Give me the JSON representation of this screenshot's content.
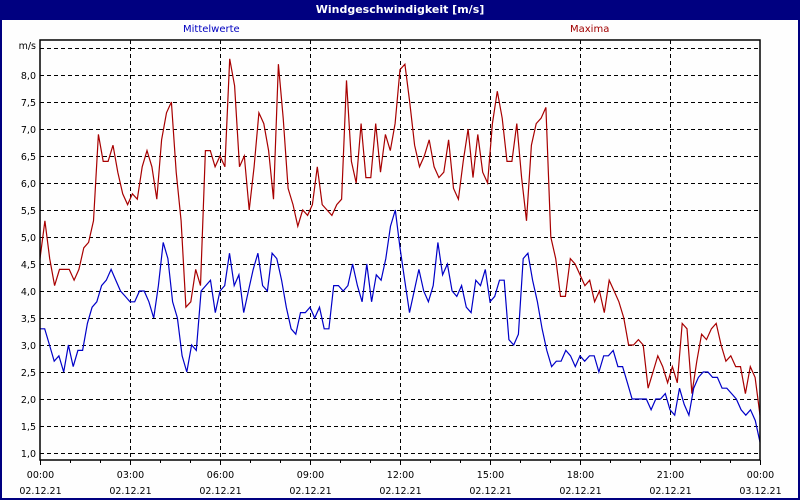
{
  "window": {
    "title": "Windgeschwindigkeit [m/s]"
  },
  "legend": {
    "series1": "Mittelwerte",
    "series2": "Maxima"
  },
  "colors": {
    "mittelwerte": "#0000c8",
    "maxima": "#a80000",
    "titlebar": "#000080"
  },
  "chart_data": {
    "type": "line",
    "title": "Windgeschwindigkeit [m/s]",
    "xlabel": "",
    "ylabel": "m/s",
    "ylim": [
      0.87,
      8.65
    ],
    "y_ticks": [
      "1,0",
      "1,5",
      "2,0",
      "2,5",
      "3,0",
      "3,5",
      "4,0",
      "4,5",
      "5,0",
      "5,5",
      "6,0",
      "6,5",
      "7,0",
      "7,5",
      "8,0"
    ],
    "x_ticks": [
      {
        "time": "00:00",
        "date": "02.12.21"
      },
      {
        "time": "03:00",
        "date": "02.12.21"
      },
      {
        "time": "06:00",
        "date": "02.12.21"
      },
      {
        "time": "09:00",
        "date": "02.12.21"
      },
      {
        "time": "12:00",
        "date": "02.12.21"
      },
      {
        "time": "15:00",
        "date": "02.12.21"
      },
      {
        "time": "18:00",
        "date": "02.12.21"
      },
      {
        "time": "21:00",
        "date": "02.12.21"
      },
      {
        "time": "00:00",
        "date": "03.12.21"
      }
    ],
    "grid": true,
    "legend_position": "top",
    "x_interval_minutes": 10,
    "series": [
      {
        "name": "Mittelwerte",
        "color": "#0000c8",
        "values": [
          3.3,
          3.3,
          3.0,
          2.7,
          2.8,
          2.5,
          3.0,
          2.6,
          2.9,
          2.9,
          3.4,
          3.7,
          3.8,
          4.1,
          4.2,
          4.4,
          4.2,
          4.0,
          3.9,
          3.8,
          3.8,
          4.0,
          4.0,
          3.8,
          3.5,
          4.1,
          4.9,
          4.6,
          3.8,
          3.5,
          2.8,
          2.5,
          3.0,
          2.9,
          4.0,
          4.1,
          4.2,
          3.6,
          4.0,
          4.1,
          4.7,
          4.1,
          4.3,
          3.6,
          4.0,
          4.4,
          4.7,
          4.1,
          4.0,
          4.7,
          4.6,
          4.2,
          3.7,
          3.3,
          3.2,
          3.6,
          3.6,
          3.7,
          3.5,
          3.7,
          3.3,
          3.3,
          4.1,
          4.1,
          4.0,
          4.1,
          4.5,
          4.1,
          3.8,
          4.5,
          3.8,
          4.3,
          4.2,
          4.6,
          5.2,
          5.5,
          4.8,
          4.2,
          3.6,
          4.0,
          4.4,
          4.0,
          3.8,
          4.1,
          4.9,
          4.3,
          4.5,
          4.0,
          3.9,
          4.1,
          3.7,
          3.6,
          4.2,
          4.1,
          4.4,
          3.8,
          3.9,
          4.2,
          4.2,
          3.1,
          3.0,
          3.2,
          4.6,
          4.7,
          4.2,
          3.8,
          3.3,
          2.9,
          2.6,
          2.7,
          2.7,
          2.9,
          2.8,
          2.6,
          2.8,
          2.7,
          2.8,
          2.8,
          2.5,
          2.8,
          2.8,
          2.9,
          2.6,
          2.6,
          2.3,
          2.0,
          2.0,
          2.0,
          2.0,
          1.8,
          2.0,
          2.0,
          2.1,
          1.8,
          1.7,
          2.2,
          1.9,
          1.7,
          2.2,
          2.4,
          2.5,
          2.5,
          2.4,
          2.4,
          2.2,
          2.2,
          2.1,
          2.0,
          1.8,
          1.7,
          1.8,
          1.6,
          1.2
        ]
      },
      {
        "name": "Maxima",
        "color": "#a80000",
        "values": [
          4.6,
          5.3,
          4.6,
          4.1,
          4.4,
          4.4,
          4.4,
          4.2,
          4.4,
          4.8,
          4.9,
          5.3,
          6.9,
          6.4,
          6.4,
          6.7,
          6.2,
          5.8,
          5.6,
          5.8,
          5.7,
          6.3,
          6.6,
          6.3,
          5.7,
          6.8,
          7.3,
          7.5,
          6.2,
          5.3,
          3.7,
          3.8,
          4.4,
          4.1,
          6.6,
          6.6,
          6.3,
          6.5,
          6.3,
          8.3,
          7.8,
          6.3,
          6.5,
          5.5,
          6.3,
          7.3,
          7.1,
          6.6,
          5.7,
          8.2,
          7.2,
          5.9,
          5.6,
          5.2,
          5.5,
          5.4,
          5.6,
          6.3,
          5.6,
          5.5,
          5.4,
          5.6,
          5.7,
          7.9,
          6.4,
          6.0,
          7.1,
          6.1,
          6.1,
          7.1,
          6.2,
          6.9,
          6.6,
          7.1,
          8.1,
          8.2,
          7.5,
          6.7,
          6.3,
          6.5,
          6.8,
          6.3,
          6.1,
          6.2,
          6.8,
          5.9,
          5.7,
          6.4,
          7.0,
          6.1,
          6.9,
          6.2,
          6.0,
          7.1,
          7.7,
          7.2,
          6.4,
          6.4,
          7.1,
          6.1,
          5.3,
          6.7,
          7.1,
          7.2,
          7.4,
          5.0,
          4.6,
          3.9,
          3.9,
          4.6,
          4.5,
          4.3,
          4.1,
          4.2,
          3.8,
          4.0,
          3.6,
          4.2,
          4.0,
          3.8,
          3.5,
          3.0,
          3.0,
          3.1,
          3.0,
          2.2,
          2.5,
          2.8,
          2.6,
          2.3,
          2.6,
          2.3,
          3.4,
          3.3,
          2.1,
          2.7,
          3.2,
          3.1,
          3.3,
          3.4,
          3.0,
          2.7,
          2.8,
          2.6,
          2.6,
          2.1,
          2.6,
          2.4,
          1.7
        ]
      }
    ]
  }
}
